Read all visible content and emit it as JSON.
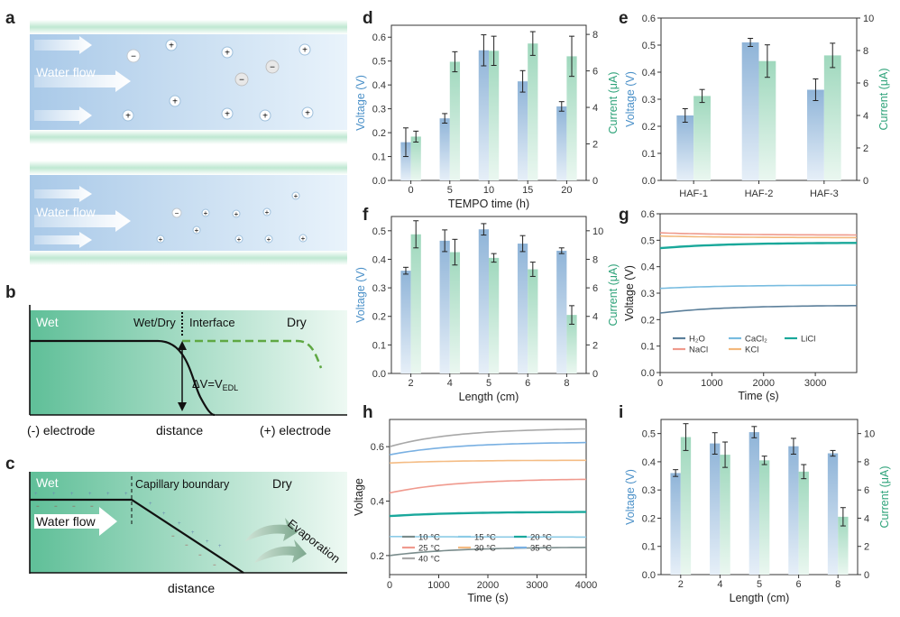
{
  "colors": {
    "voltage": "#4a90c8",
    "current": "#2fa37a",
    "axis": "#333333"
  },
  "schematic": {
    "a": {
      "panel_label": "a",
      "flow_top": "Water flow",
      "flow_bottom": "Water flow"
    },
    "b": {
      "panel_label": "b",
      "wet": "Wet",
      "wetdry": "Wet/Dry",
      "interface": "Interface",
      "dry": "Dry",
      "dv": "ΔV=V",
      "dv_sub": "EDL",
      "neg": "(-) electrode",
      "dist": "distance",
      "pos": "(+) electrode"
    },
    "c": {
      "panel_label": "c",
      "wet": "Wet",
      "boundary": "Capillary boundary",
      "dry": "Dry",
      "flow": "Water flow",
      "evap": "Evaporation",
      "dist": "distance"
    }
  },
  "chart_data": [
    {
      "id": "d",
      "panel_label": "d",
      "type": "bar",
      "categories": [
        "0",
        "5",
        "10",
        "15",
        "20"
      ],
      "series": [
        {
          "name": "Voltage",
          "axis": "left",
          "values": [
            0.16,
            0.26,
            0.545,
            0.415,
            0.31
          ],
          "errors": [
            0.06,
            0.02,
            0.065,
            0.045,
            0.02
          ]
        },
        {
          "name": "Current",
          "axis": "right",
          "values": [
            2.4,
            6.5,
            7.1,
            7.5,
            6.8
          ],
          "errors": [
            0.3,
            0.55,
            0.8,
            0.65,
            1.1
          ]
        }
      ],
      "xlabel": "TEMPO time (h)",
      "ylabel": "Voltage (V)",
      "y2label": "Current (μA)",
      "ylim": [
        0,
        0.65
      ],
      "y2lim": [
        0,
        8.5
      ],
      "yticks": [
        "0.0",
        "0.1",
        "0.2",
        "0.3",
        "0.4",
        "0.5",
        "0.6"
      ],
      "y2ticks": [
        "0",
        "2",
        "4",
        "6",
        "8"
      ]
    },
    {
      "id": "e",
      "panel_label": "e",
      "type": "bar",
      "categories": [
        "HAF-1",
        "HAF-2",
        "HAF-3"
      ],
      "series": [
        {
          "name": "Voltage",
          "axis": "left",
          "values": [
            0.24,
            0.51,
            0.335
          ],
          "errors": [
            0.025,
            0.015,
            0.04
          ]
        },
        {
          "name": "Current",
          "axis": "right",
          "values": [
            5.2,
            7.35,
            7.7
          ],
          "errors": [
            0.4,
            1.0,
            0.75
          ]
        }
      ],
      "xlabel": "",
      "ylabel": "Voltage (V)",
      "y2label": "Current (μA)",
      "ylim": [
        0,
        0.6
      ],
      "y2lim": [
        0,
        10
      ],
      "yticks": [
        "0.0",
        "0.1",
        "0.2",
        "0.3",
        "0.4",
        "0.5",
        "0.6"
      ],
      "y2ticks": [
        "0",
        "2",
        "4",
        "6",
        "8",
        "10"
      ]
    },
    {
      "id": "f",
      "panel_label": "f",
      "type": "bar",
      "categories": [
        "2",
        "4",
        "5",
        "6",
        "8"
      ],
      "series": [
        {
          "name": "Voltage",
          "axis": "left",
          "values": [
            0.36,
            0.465,
            0.505,
            0.455,
            0.43
          ],
          "errors": [
            0.012,
            0.038,
            0.02,
            0.028,
            0.01
          ]
        },
        {
          "name": "Current",
          "axis": "right",
          "values": [
            9.75,
            8.5,
            8.1,
            7.3,
            4.1
          ],
          "errors": [
            0.95,
            0.9,
            0.3,
            0.5,
            0.65
          ]
        }
      ],
      "xlabel": "Length (cm)",
      "ylabel": "Voltage (V)",
      "y2label": "Current (μA)",
      "ylim": [
        0,
        0.55
      ],
      "y2lim": [
        0,
        11
      ],
      "yticks": [
        "0.0",
        "0.1",
        "0.2",
        "0.3",
        "0.4",
        "0.5"
      ],
      "y2ticks": [
        "0",
        "2",
        "4",
        "6",
        "8",
        "10"
      ]
    },
    {
      "id": "g",
      "panel_label": "g",
      "type": "line",
      "series": [
        {
          "name": "H₂O",
          "color": "#5b7f9a",
          "y0": 0.225,
          "y1": 0.253
        },
        {
          "name": "CaCl₂",
          "color": "#78bce0",
          "y0": 0.318,
          "y1": 0.33
        },
        {
          "name": "LiCl",
          "color": "#19a89a",
          "y0": 0.47,
          "y1": 0.49
        },
        {
          "name": "NaCl",
          "color": "#ef9a8c",
          "y0": 0.528,
          "y1": 0.52
        },
        {
          "name": "KCl",
          "color": "#f3b87c",
          "y0": 0.516,
          "y1": 0.51
        }
      ],
      "xlabel": "Time (s)",
      "ylabel": "Voltage (V)",
      "xlim": [
        0,
        3800
      ],
      "ylim": [
        0,
        0.6
      ],
      "xticks": [
        "0",
        "1000",
        "2000",
        "3000"
      ],
      "yticks": [
        "0.0",
        "0.1",
        "0.2",
        "0.3",
        "0.4",
        "0.5",
        "0.6"
      ]
    },
    {
      "id": "h",
      "panel_label": "h",
      "type": "line",
      "series": [
        {
          "name": "10 °C",
          "color": "#7a8c8c",
          "y0": 0.2,
          "y1": 0.23
        },
        {
          "name": "15 °C",
          "color": "#8ccbe6",
          "y0": 0.27,
          "y1": 0.268
        },
        {
          "name": "20 °C",
          "color": "#1aa89c",
          "y0": 0.345,
          "y1": 0.36
        },
        {
          "name": "25 °C",
          "color": "#f09a8e",
          "y0": 0.43,
          "y1": 0.48
        },
        {
          "name": "30 °C",
          "color": "#f4bc84",
          "y0": 0.54,
          "y1": 0.55
        },
        {
          "name": "35 °C",
          "color": "#79b0e2",
          "y0": 0.57,
          "y1": 0.615
        },
        {
          "name": "40 °C",
          "color": "#a8a8a8",
          "y0": 0.6,
          "y1": 0.665
        }
      ],
      "xlabel": "Time (s)",
      "ylabel": "Voltage",
      "xlim": [
        0,
        4000
      ],
      "ylim": [
        0.13,
        0.7
      ],
      "xticks": [
        "0",
        "1000",
        "2000",
        "3000",
        "4000"
      ],
      "yticks": [
        "0.2",
        "0.4",
        "0.6"
      ]
    },
    {
      "id": "i",
      "panel_label": "i",
      "type": "bar",
      "categories": [
        "2",
        "4",
        "5",
        "6",
        "8"
      ],
      "series": [
        {
          "name": "Voltage",
          "axis": "left",
          "values": [
            0.36,
            0.465,
            0.505,
            0.455,
            0.43
          ],
          "errors": [
            0.012,
            0.038,
            0.02,
            0.028,
            0.01
          ]
        },
        {
          "name": "Current",
          "axis": "right",
          "values": [
            9.75,
            8.5,
            8.1,
            7.3,
            4.1
          ],
          "errors": [
            0.95,
            0.9,
            0.3,
            0.5,
            0.65
          ]
        }
      ],
      "xlabel": "Length (cm)",
      "ylabel": "Voltage (V)",
      "y2label": "Current (μA)",
      "ylim": [
        0,
        0.55
      ],
      "y2lim": [
        0,
        11
      ],
      "yticks": [
        "0.0",
        "0.1",
        "0.2",
        "0.3",
        "0.4",
        "0.5"
      ],
      "y2ticks": [
        "0",
        "2",
        "4",
        "6",
        "8",
        "10"
      ]
    }
  ]
}
